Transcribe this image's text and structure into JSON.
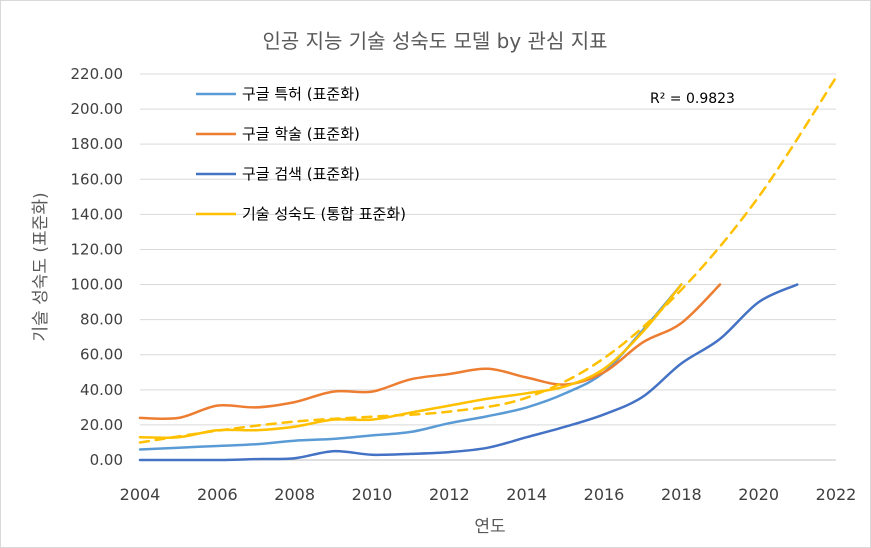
{
  "chart_data": {
    "type": "line",
    "title": "인공 지능 기술 성숙도 모델 by 관심 지표",
    "xlabel": "연도",
    "ylabel": "기술 성숙도 (표준화)",
    "xlim": [
      2004,
      2022
    ],
    "ylim": [
      0,
      220
    ],
    "x_ticks": [
      "2004",
      "2006",
      "2008",
      "2010",
      "2012",
      "2014",
      "2016",
      "2018",
      "2020",
      "2022"
    ],
    "y_ticks": [
      "0.00",
      "20.00",
      "40.00",
      "60.00",
      "80.00",
      "100.00",
      "120.00",
      "140.00",
      "160.00",
      "180.00",
      "200.00",
      "220.00"
    ],
    "grid": "horizontal",
    "legend_position": "top-left",
    "annotation": "R² = 0.9823",
    "series": [
      {
        "name": "구글 특허 (표준화)",
        "color": "#5B9BD5",
        "style": "solid",
        "points": [
          [
            2004,
            6
          ],
          [
            2005,
            7
          ],
          [
            2006,
            8
          ],
          [
            2007,
            9
          ],
          [
            2008,
            11
          ],
          [
            2009,
            12
          ],
          [
            2010,
            14
          ],
          [
            2011,
            16
          ],
          [
            2012,
            21
          ],
          [
            2013,
            25
          ],
          [
            2014,
            30
          ],
          [
            2015,
            38
          ],
          [
            2016,
            50
          ],
          [
            2017,
            74
          ],
          [
            2018,
            100
          ]
        ]
      },
      {
        "name": "구글 학술 (표준화)",
        "color": "#ED7D31",
        "style": "solid",
        "points": [
          [
            2004,
            24
          ],
          [
            2005,
            24
          ],
          [
            2006,
            31
          ],
          [
            2007,
            30
          ],
          [
            2008,
            33
          ],
          [
            2009,
            39
          ],
          [
            2010,
            39
          ],
          [
            2011,
            46
          ],
          [
            2012,
            49
          ],
          [
            2013,
            52
          ],
          [
            2014,
            47
          ],
          [
            2015,
            43
          ],
          [
            2016,
            50
          ],
          [
            2017,
            67
          ],
          [
            2018,
            78
          ],
          [
            2019,
            100
          ]
        ]
      },
      {
        "name": "구글 검색 (표준화)",
        "color": "#4472C4",
        "style": "solid",
        "points": [
          [
            2004,
            0
          ],
          [
            2005,
            0
          ],
          [
            2006,
            0
          ],
          [
            2007,
            0.5
          ],
          [
            2008,
            1
          ],
          [
            2009,
            5
          ],
          [
            2010,
            3
          ],
          [
            2011,
            3.5
          ],
          [
            2012,
            4.5
          ],
          [
            2013,
            7
          ],
          [
            2014,
            13
          ],
          [
            2015,
            19
          ],
          [
            2016,
            26
          ],
          [
            2017,
            36
          ],
          [
            2018,
            55
          ],
          [
            2019,
            69
          ],
          [
            2020,
            90
          ],
          [
            2021,
            100
          ]
        ]
      },
      {
        "name": "기술 성숙도 (통합 표준화)",
        "color": "#FFC000",
        "style": "solid",
        "points": [
          [
            2004,
            13
          ],
          [
            2005,
            13
          ],
          [
            2006,
            17
          ],
          [
            2007,
            17
          ],
          [
            2008,
            19
          ],
          [
            2009,
            23
          ],
          [
            2010,
            23
          ],
          [
            2011,
            27
          ],
          [
            2012,
            31
          ],
          [
            2013,
            35
          ],
          [
            2014,
            38
          ],
          [
            2015,
            42
          ],
          [
            2016,
            52
          ],
          [
            2017,
            73
          ],
          [
            2018,
            100
          ]
        ]
      },
      {
        "color": "#FFC000",
        "style": "dashed",
        "points": [
          [
            2004,
            10
          ],
          [
            2006,
            16.7
          ],
          [
            2008,
            21.9
          ],
          [
            2010,
            24.7
          ],
          [
            2012,
            27.6
          ],
          [
            2014,
            35.5
          ],
          [
            2016,
            58
          ],
          [
            2018,
            97
          ],
          [
            2020,
            150
          ],
          [
            2022,
            218
          ]
        ]
      }
    ]
  }
}
